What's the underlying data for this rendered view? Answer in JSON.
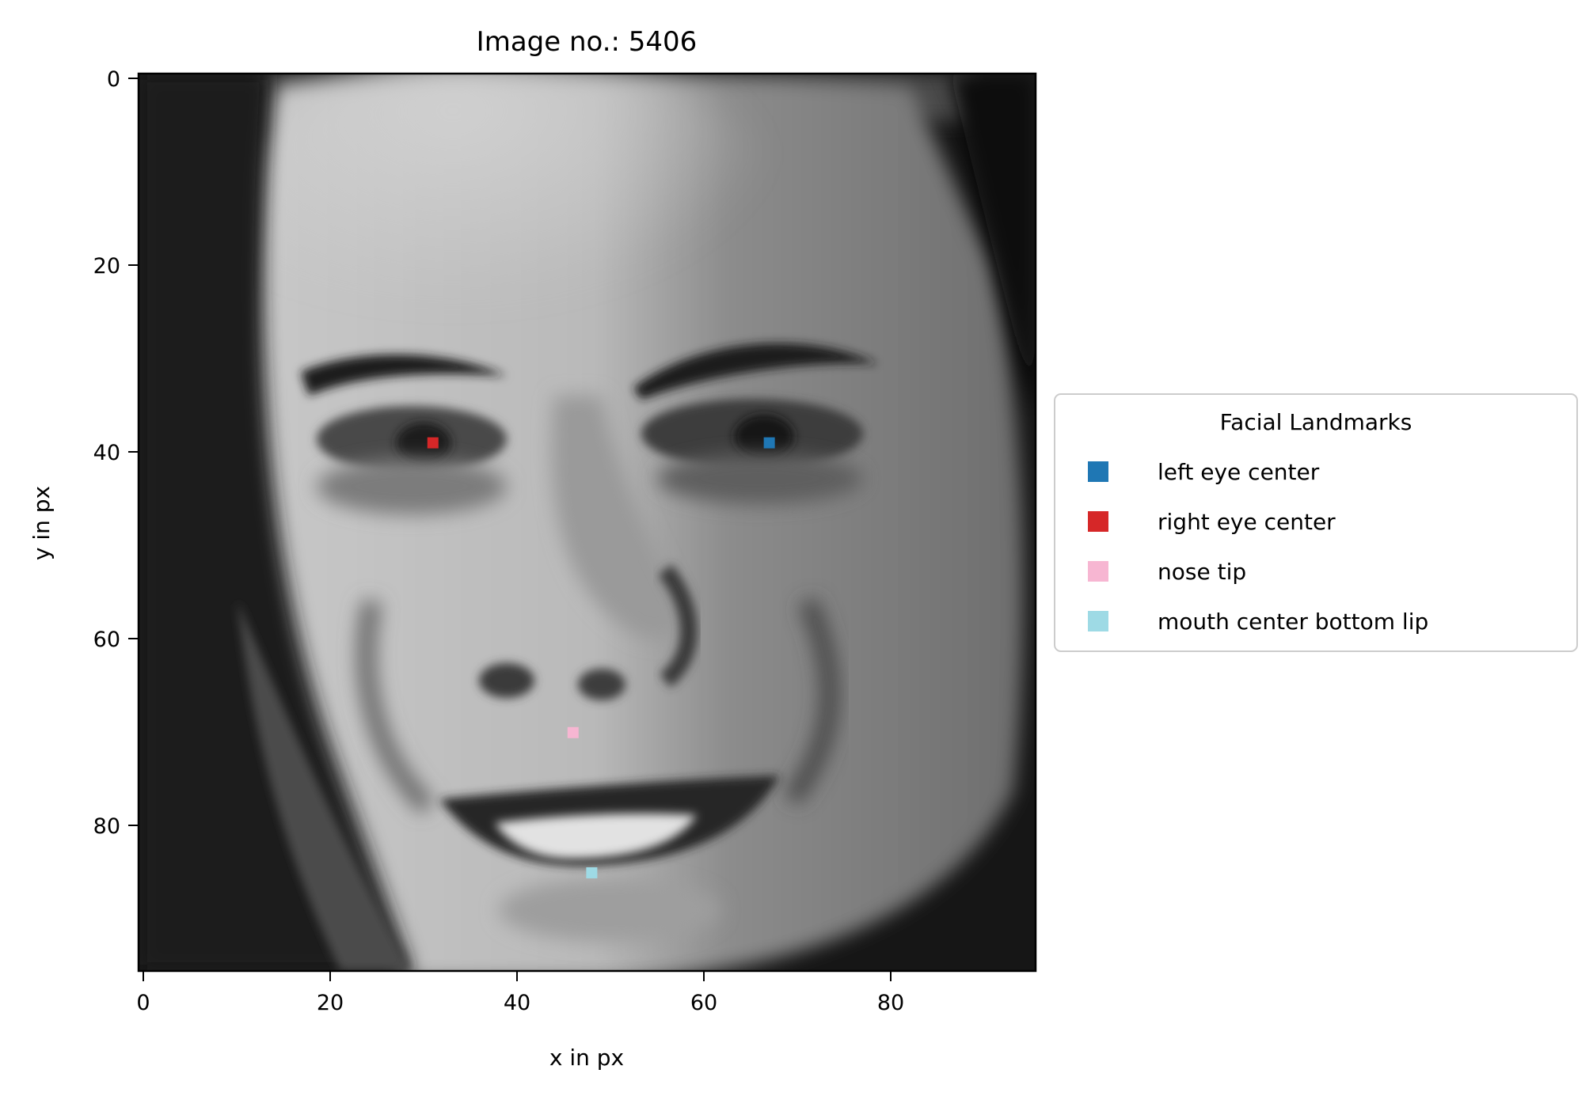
{
  "chart_data": {
    "type": "scatter",
    "title": "Image no.: 5406",
    "xlabel": "x in px",
    "ylabel": "y in px",
    "xlim": [
      -0.5,
      95.5
    ],
    "ylim": [
      95.5,
      -0.5
    ],
    "y_inverted": true,
    "grid": false,
    "xticks": [
      0,
      20,
      40,
      60,
      80
    ],
    "yticks": [
      0,
      20,
      40,
      60,
      80
    ],
    "background": "grayscale photograph of a smiling man's face, 96x96 pixels",
    "legend": {
      "title": "Facial Landmarks",
      "placement": "center-right, outside the plot",
      "entries": [
        "left eye center",
        "right eye center",
        "nose tip",
        "mouth center bottom lip"
      ]
    },
    "series": [
      {
        "name": "left eye center",
        "color": "#1f77b4",
        "points": [
          [
            67,
            39
          ]
        ]
      },
      {
        "name": "right eye center",
        "color": "#d62728",
        "points": [
          [
            31,
            39
          ]
        ]
      },
      {
        "name": "nose tip",
        "color": "#f7b6d2",
        "points": [
          [
            46,
            70
          ]
        ]
      },
      {
        "name": "mouth center bottom lip",
        "color": "#9edae5",
        "points": [
          [
            48,
            85
          ]
        ]
      }
    ]
  }
}
